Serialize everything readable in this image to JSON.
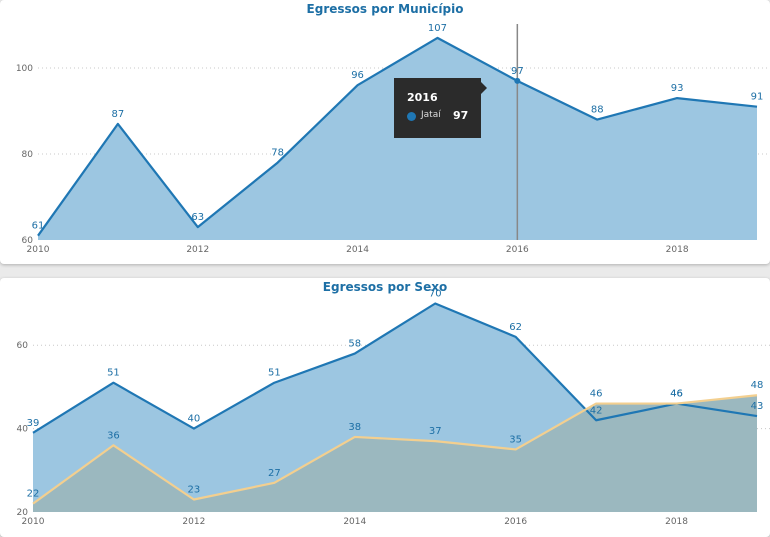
{
  "chart_data": [
    {
      "type": "area",
      "title": "Egressos por Município",
      "x": [
        2010,
        2011,
        2012,
        2013,
        2014,
        2015,
        2016,
        2017,
        2018,
        2019
      ],
      "series": [
        {
          "name": "Jataí",
          "values": [
            61,
            87,
            63,
            78,
            96,
            107,
            97,
            88,
            93,
            91
          ],
          "color": "#1f77b4",
          "fill": "#9cc6e1"
        }
      ],
      "x_ticks": [
        "2010",
        "2012",
        "2014",
        "2016",
        "2018"
      ],
      "y_ticks": [
        "60",
        "80",
        "100"
      ],
      "ylim": [
        60,
        110
      ],
      "xlim": [
        2010,
        2019
      ],
      "grid": true,
      "hover": {
        "year_label": "2016",
        "series_label": "Jataí",
        "value_label": "97"
      }
    },
    {
      "type": "area",
      "title": "Egressos por Sexo",
      "x": [
        2010,
        2011,
        2012,
        2013,
        2014,
        2015,
        2016,
        2017,
        2018,
        2019
      ],
      "series": [
        {
          "values": [
            39,
            51,
            40,
            51,
            58,
            70,
            62,
            42,
            46,
            43
          ],
          "color": "#1f77b4",
          "fill": "#9cc6e1"
        },
        {
          "values": [
            22,
            36,
            23,
            27,
            38,
            37,
            35,
            46,
            46,
            48
          ],
          "color": "#f3cf8f",
          "fill": "#9bb8bf"
        }
      ],
      "x_ticks": [
        "2010",
        "2012",
        "2014",
        "2016",
        "2018"
      ],
      "y_ticks": [
        "20",
        "40",
        "60"
      ],
      "ylim": [
        20,
        72
      ],
      "xlim": [
        2010,
        2019
      ],
      "grid": true
    }
  ]
}
